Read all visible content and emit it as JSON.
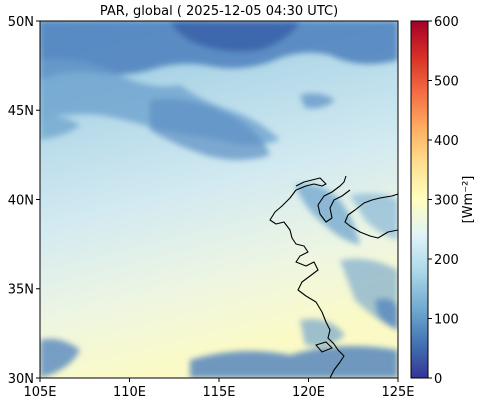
{
  "map": {
    "title": "PAR, global ( 2025-12-05 04:30 UTC)",
    "lon_ticks": [
      "105E",
      "110E",
      "115E",
      "120E",
      "125E"
    ],
    "lat_ticks": [
      "30N",
      "35N",
      "40N",
      "45N",
      "50N"
    ],
    "lon_range": [
      105,
      125
    ],
    "lat_range": [
      30,
      50
    ]
  },
  "colorbar": {
    "label": "[Wm⁻²]",
    "ticks": [
      "0",
      "100",
      "200",
      "300",
      "400",
      "500",
      "600"
    ],
    "range": [
      0,
      600
    ],
    "colormap": "RdYlBu_r",
    "colors": [
      "#313695",
      "#4575b4",
      "#74add1",
      "#abd9e9",
      "#e0f3f8",
      "#ffffbf",
      "#fee090",
      "#fdae61",
      "#f46d43",
      "#d73027",
      "#a50026"
    ]
  }
}
